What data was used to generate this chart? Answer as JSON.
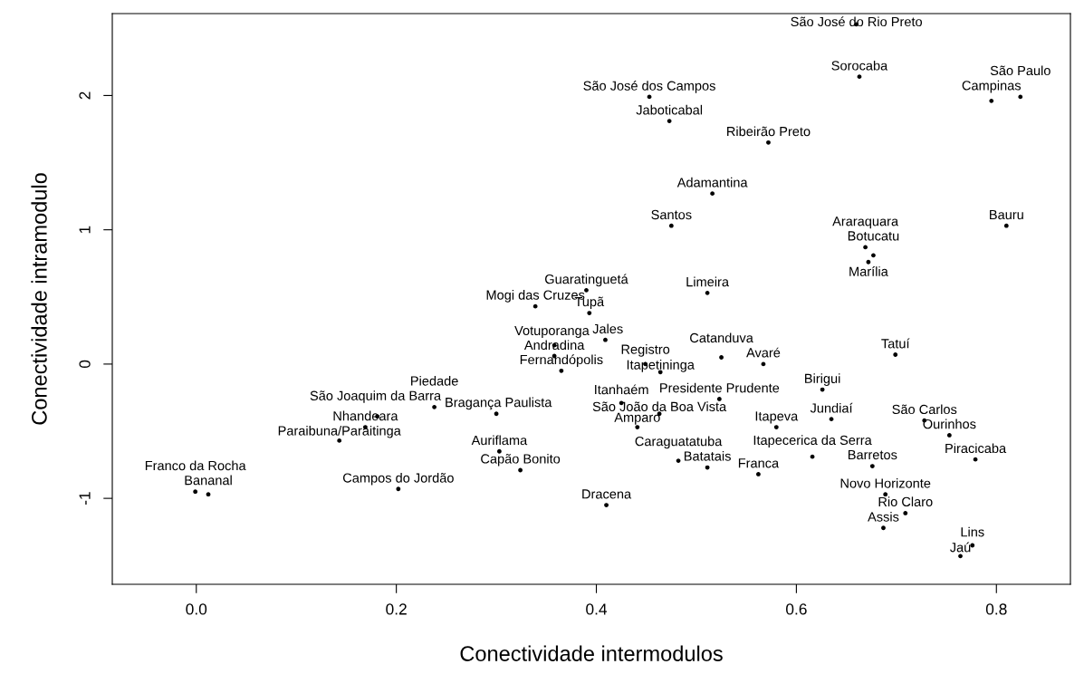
{
  "chart_data": {
    "type": "scatter",
    "xlabel": "Conectividade intermodulos",
    "ylabel": "Conectividade intramodulo",
    "xlim": [
      -0.084,
      0.874
    ],
    "ylim": [
      -1.64,
      2.61
    ],
    "xticks": [
      {
        "value": 0,
        "label": "0.0"
      },
      {
        "value": 0.2,
        "label": "0.2"
      },
      {
        "value": 0.4,
        "label": "0.4"
      },
      {
        "value": 0.6,
        "label": "0.6"
      },
      {
        "value": 0.8,
        "label": "0.8"
      }
    ],
    "yticks": [
      -1,
      0,
      1,
      2
    ],
    "grid": false,
    "legend": false,
    "marker": "circle",
    "series": [
      {
        "color": "#000000",
        "x": [
          0.66,
          0.663,
          0.824,
          0.795,
          0.453,
          0.473,
          0.572,
          0.516,
          0.475,
          0.81,
          0.669,
          0.677,
          0.672,
          0.39,
          0.511,
          0.339,
          0.393,
          0.409,
          0.358,
          0.358,
          0.449,
          0.525,
          0.567,
          0.365,
          0.464,
          0.699,
          0.626,
          0.523,
          0.425,
          0.463,
          0.3,
          0.238,
          0.181,
          0.169,
          0.143,
          0.441,
          0.58,
          0.635,
          0.728,
          0.753,
          0.303,
          0.779,
          0.616,
          0.676,
          0.482,
          0.511,
          0.562,
          0.324,
          0.689,
          0.709,
          0.687,
          0.776,
          0.764,
          0.41,
          0.202,
          -0.001,
          0.012
        ],
        "values": [
          2.53,
          2.14,
          1.99,
          1.96,
          1.99,
          1.81,
          1.65,
          1.27,
          1.03,
          1.03,
          0.87,
          0.81,
          0.76,
          0.55,
          0.53,
          0.43,
          0.38,
          0.18,
          0.14,
          0.06,
          0.0,
          0.05,
          0.0,
          -0.05,
          -0.06,
          0.07,
          -0.19,
          -0.26,
          -0.29,
          -0.37,
          -0.37,
          -0.32,
          -0.39,
          -0.47,
          -0.57,
          -0.47,
          -0.47,
          -0.41,
          -0.42,
          -0.53,
          -0.65,
          -0.71,
          -0.69,
          -0.76,
          -0.72,
          -0.77,
          -0.82,
          -0.79,
          -0.97,
          -1.11,
          -1.22,
          -1.35,
          -1.43,
          -1.05,
          -0.93,
          -0.95,
          -0.97
        ],
        "value_labels": [
          "São José do Rio Preto",
          "Sorocaba",
          "São Paulo",
          "Campinas",
          "São José dos Campos",
          "Jaboticabal",
          "Ribeirão Preto",
          "Adamantina",
          "Santos",
          "Bauru",
          "Araraquara",
          "Botucatu",
          "Marília",
          "Guaratinguetá",
          "Limeira",
          "Mogi das Cruzes",
          "Tupã",
          "Jales",
          "Votuporanga",
          "Andradina",
          "Registro",
          "Catanduva",
          "Avaré",
          "Fernandópolis",
          "Itapetininga",
          "Tatuí",
          "Birigui",
          "Presidente Prudente",
          "Itanhaém",
          "São João da Boa Vista",
          "Bragança Paulista",
          "Piedade",
          "São Joaquim da Barra",
          "Nhandeara",
          "Paraibuna/Paraitinga",
          "Amparo",
          "Itapeva",
          "Jundiaí",
          "São Carlos",
          "Ourinhos",
          "Auriflama",
          "Piracicaba",
          "Itapecerica da Serra",
          "Barretos",
          "Caraguatatuba",
          "Batatais",
          "Franca",
          "Capão Bonito",
          "Novo Horizonte",
          "Rio Claro",
          "Assis",
          "Lins",
          "Jaú",
          "Dracena",
          "Campos do Jordão",
          "Franco da Rocha",
          "Bananal"
        ]
      }
    ]
  }
}
